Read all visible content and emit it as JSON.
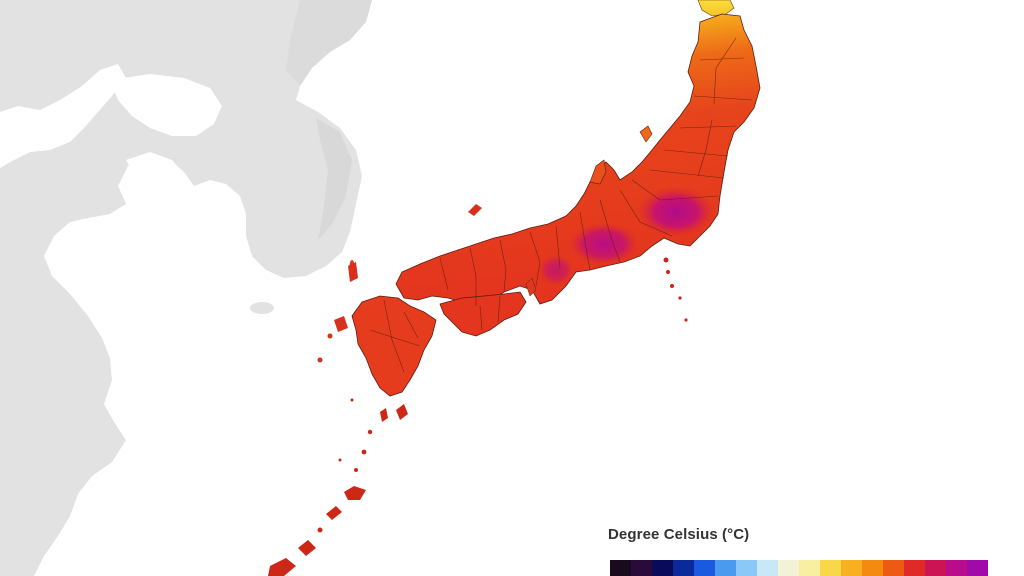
{
  "legend": {
    "title": "Degree Celsius (°C)",
    "colors": [
      "#1a0a1e",
      "#2a0a3a",
      "#0a0a5a",
      "#0a2a9a",
      "#1a5ae0",
      "#4a9af0",
      "#8ac8f8",
      "#c8e8f8",
      "#f2f2d8",
      "#f8f0a0",
      "#f8d848",
      "#f8b020",
      "#f48a10",
      "#ec5a14",
      "#e02a28",
      "#cc1454",
      "#b80c8c",
      "#a00aa8"
    ]
  },
  "colors": {
    "background": "#ffffff",
    "land_neighbor": "#e2e2e2",
    "land_neighbor_shade": "#d6d6d6",
    "boundary": "#5a1c10",
    "north_hot": "#f8c820",
    "north_mid": "#f49a18",
    "central": "#e8441c",
    "west": "#e4341e",
    "hot_core": "#c0106a",
    "islands": "#cc2418"
  }
}
